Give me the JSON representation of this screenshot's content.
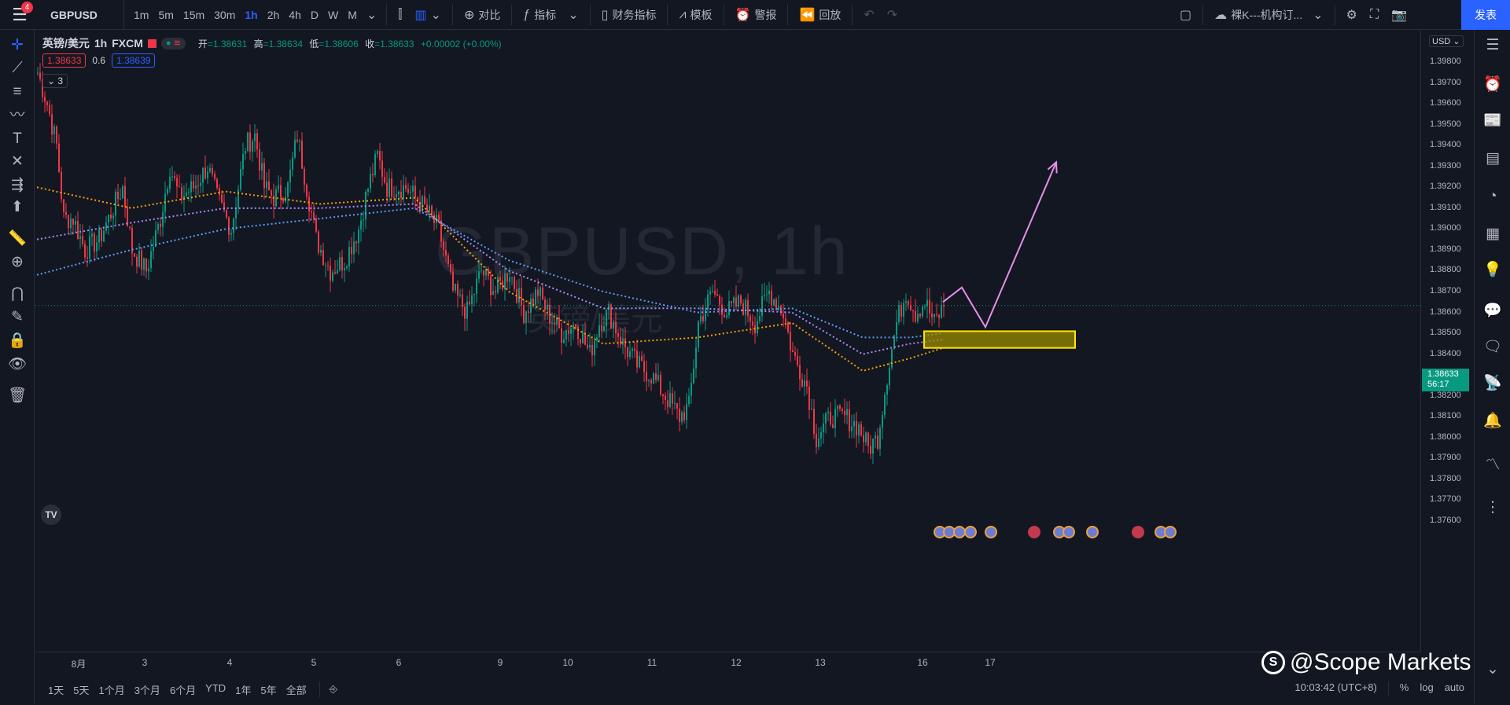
{
  "topbar": {
    "notification_count": "4",
    "symbol": "GBPUSD",
    "intervals": [
      "1m",
      "5m",
      "15m",
      "30m",
      "1h",
      "2h",
      "4h",
      "D",
      "W",
      "M"
    ],
    "active_interval": "1h",
    "compare_label": "对比",
    "indicators_label": "指标",
    "financials_label": "财务指标",
    "templates_label": "模板",
    "alert_label": "警报",
    "replay_label": "回放",
    "layout_name": "裸K---机构订...",
    "publish_label": "发表"
  },
  "legend": {
    "symbol_name": "英镑/美元",
    "interval": "1h",
    "source": "FXCM",
    "open_label": "开",
    "open": "=1.38631",
    "high_label": "高",
    "high": "=1.38634",
    "low_label": "低",
    "low": "=1.38606",
    "close_label": "收",
    "close": "=1.38633",
    "change": "+0.00002 (+0.00%)",
    "bid": "1.38633",
    "spread": "0.6",
    "ask": "1.38639",
    "indicators_collapsed": "3"
  },
  "watermark": {
    "line1": "GBPUSD, 1h",
    "line2": "英镑/美元"
  },
  "price_axis": {
    "currency": "USD",
    "last_price": "1.38633",
    "countdown": "56:17"
  },
  "bottom": {
    "ranges": [
      "1天",
      "5天",
      "1个月",
      "3个月",
      "6个月",
      "YTD",
      "1年",
      "5年",
      "全部"
    ],
    "clock": "10:03:42 (UTC+8)",
    "percent": "%",
    "log": "log",
    "auto": "auto"
  },
  "branding": {
    "text": "@Scope Markets"
  },
  "colors": {
    "background": "#131722",
    "up": "#089981",
    "down": "#f23645",
    "accent": "#2962ff",
    "ma_blue": "#5b9cf6",
    "ma_purple": "#a78bfa",
    "ma_orange": "#f59e0b",
    "drawing_arrow": "#e68fe8",
    "zone": "#9a8b00"
  },
  "chart_data": {
    "type": "candlestick",
    "symbol": "GBPUSD",
    "interval": "1h",
    "y_ticks": [
      "1.37600",
      "1.37700",
      "1.37800",
      "1.37900",
      "1.38000",
      "1.38100",
      "1.38200",
      "1.38300",
      "1.38400",
      "1.38500",
      "1.38600",
      "1.38700",
      "1.38800",
      "1.38900",
      "1.39000",
      "1.39100",
      "1.39200",
      "1.39300",
      "1.39400",
      "1.39500",
      "1.39600",
      "1.39700",
      "1.39800"
    ],
    "x_ticks": [
      "8月",
      "3",
      "4",
      "5",
      "6",
      "9",
      "10",
      "11",
      "12",
      "13",
      "16",
      "17"
    ],
    "ylim": [
      1.3755,
      1.3995
    ],
    "last_price": 1.38633,
    "series_path": [
      [
        0,
        1.3975
      ],
      [
        4,
        1.396
      ],
      [
        8,
        1.394
      ],
      [
        11,
        1.3905
      ],
      [
        15,
        1.3905
      ],
      [
        20,
        1.389
      ],
      [
        26,
        1.3895
      ],
      [
        32,
        1.391
      ],
      [
        36,
        1.392
      ],
      [
        40,
        1.389
      ],
      [
        46,
        1.388
      ],
      [
        52,
        1.3905
      ],
      [
        56,
        1.393
      ],
      [
        60,
        1.3915
      ],
      [
        66,
        1.392
      ],
      [
        72,
        1.393
      ],
      [
        76,
        1.3915
      ],
      [
        82,
        1.39
      ],
      [
        88,
        1.394
      ],
      [
        92,
        1.3945
      ],
      [
        96,
        1.392
      ],
      [
        100,
        1.3915
      ],
      [
        106,
        1.392
      ],
      [
        110,
        1.3945
      ],
      [
        114,
        1.392
      ],
      [
        118,
        1.3895
      ],
      [
        124,
        1.388
      ],
      [
        130,
        1.3885
      ],
      [
        136,
        1.39
      ],
      [
        140,
        1.392
      ],
      [
        144,
        1.3935
      ],
      [
        148,
        1.392
      ],
      [
        156,
        1.392
      ],
      [
        164,
        1.391
      ],
      [
        170,
        1.39
      ],
      [
        176,
        1.387
      ],
      [
        182,
        1.386
      ],
      [
        188,
        1.388
      ],
      [
        194,
        1.387
      ],
      [
        200,
        1.388
      ],
      [
        206,
        1.386
      ],
      [
        212,
        1.387
      ],
      [
        216,
        1.386
      ],
      [
        222,
        1.385
      ],
      [
        228,
        1.3855
      ],
      [
        234,
        1.384
      ],
      [
        238,
        1.3855
      ],
      [
        242,
        1.386
      ],
      [
        248,
        1.3845
      ],
      [
        254,
        1.3835
      ],
      [
        260,
        1.383
      ],
      [
        266,
        1.382
      ],
      [
        272,
        1.381
      ],
      [
        276,
        1.3815
      ],
      [
        280,
        1.3855
      ],
      [
        286,
        1.387
      ],
      [
        292,
        1.386
      ],
      [
        298,
        1.3865
      ],
      [
        304,
        1.3855
      ],
      [
        310,
        1.387
      ],
      [
        316,
        1.386
      ],
      [
        320,
        1.384
      ],
      [
        326,
        1.3825
      ],
      [
        330,
        1.38
      ],
      [
        336,
        1.381
      ],
      [
        342,
        1.381
      ],
      [
        348,
        1.3805
      ],
      [
        352,
        1.3795
      ],
      [
        356,
        1.38
      ],
      [
        360,
        1.383
      ],
      [
        364,
        1.3855
      ],
      [
        368,
        1.387
      ],
      [
        372,
        1.386
      ],
      [
        376,
        1.3865
      ],
      [
        380,
        1.3855
      ],
      [
        384,
        1.3863
      ]
    ],
    "moving_averages": [
      {
        "color": "#5b9cf6",
        "points": [
          [
            0,
            1.3878
          ],
          [
            40,
            1.389
          ],
          [
            80,
            1.39
          ],
          [
            120,
            1.3905
          ],
          [
            160,
            1.391
          ],
          [
            200,
            1.3885
          ],
          [
            240,
            1.387
          ],
          [
            280,
            1.386
          ],
          [
            320,
            1.3862
          ],
          [
            350,
            1.3848
          ],
          [
            370,
            1.3848
          ],
          [
            384,
            1.385
          ]
        ]
      },
      {
        "color": "#a78bfa",
        "points": [
          [
            0,
            1.3895
          ],
          [
            40,
            1.3903
          ],
          [
            80,
            1.391
          ],
          [
            120,
            1.391
          ],
          [
            160,
            1.3912
          ],
          [
            200,
            1.388
          ],
          [
            240,
            1.3862
          ],
          [
            280,
            1.3862
          ],
          [
            320,
            1.386
          ],
          [
            350,
            1.384
          ],
          [
            370,
            1.3845
          ],
          [
            384,
            1.3847
          ]
        ]
      },
      {
        "color": "#f59e0b",
        "points": [
          [
            0,
            1.392
          ],
          [
            40,
            1.391
          ],
          [
            80,
            1.3918
          ],
          [
            120,
            1.3912
          ],
          [
            160,
            1.3915
          ],
          [
            200,
            1.387
          ],
          [
            240,
            1.3845
          ],
          [
            280,
            1.3848
          ],
          [
            320,
            1.3855
          ],
          [
            350,
            1.3832
          ],
          [
            370,
            1.3838
          ],
          [
            384,
            1.3843
          ]
        ]
      }
    ],
    "demand_zone": {
      "top": 1.3851,
      "bottom": 1.3843,
      "x_start": 376,
      "x_end": 440
    },
    "projection_arrow": [
      [
        384,
        1.3865
      ],
      [
        392,
        1.3872
      ],
      [
        402,
        1.3853
      ],
      [
        432,
        1.3932
      ]
    ]
  }
}
